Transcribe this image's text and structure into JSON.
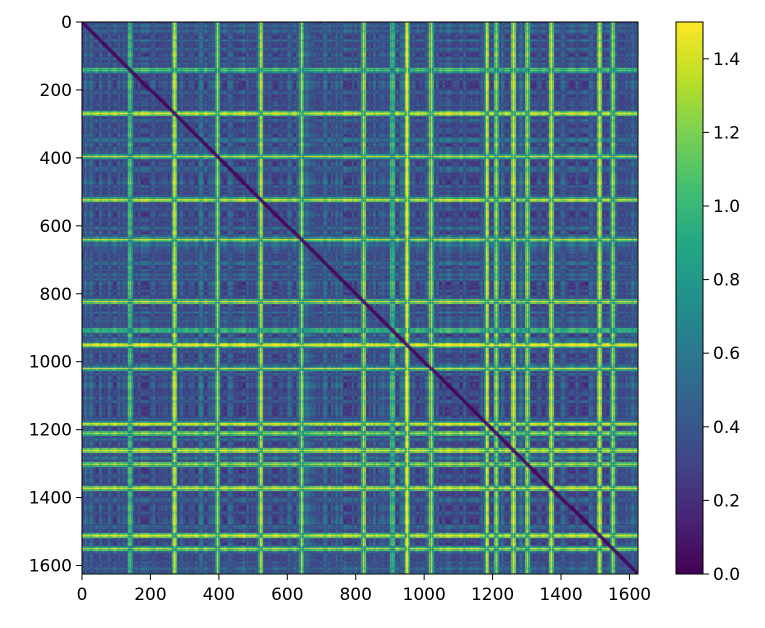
{
  "chart_data": {
    "type": "heatmap",
    "title": "",
    "xlabel": "",
    "ylabel": "",
    "description_n": 1625,
    "x_range": [
      0,
      1625
    ],
    "y_range": [
      0,
      1625
    ],
    "y_inverted": true,
    "x_ticks": [
      0,
      200,
      400,
      600,
      800,
      1000,
      1200,
      1400,
      1600
    ],
    "y_ticks": [
      0,
      200,
      400,
      600,
      800,
      1000,
      1200,
      1400,
      1600
    ],
    "colorbar": {
      "range": [
        0.0,
        1.5
      ],
      "ticks": [
        "0.0",
        "0.2",
        "0.4",
        "0.6",
        "0.8",
        "1.0",
        "1.2",
        "1.4"
      ],
      "colormap": "viridis"
    },
    "diagonal_value": 0.0,
    "bright_bands": [
      140,
      270,
      395,
      520,
      640,
      820,
      905,
      950,
      1020,
      1180,
      1210,
      1260,
      1300,
      1370,
      1510,
      1550
    ],
    "grid": false
  },
  "colors": {
    "viridis_low": "#440154",
    "viridis_mid": "#21918c",
    "viridis_high": "#fde725",
    "axis": "#000000"
  }
}
